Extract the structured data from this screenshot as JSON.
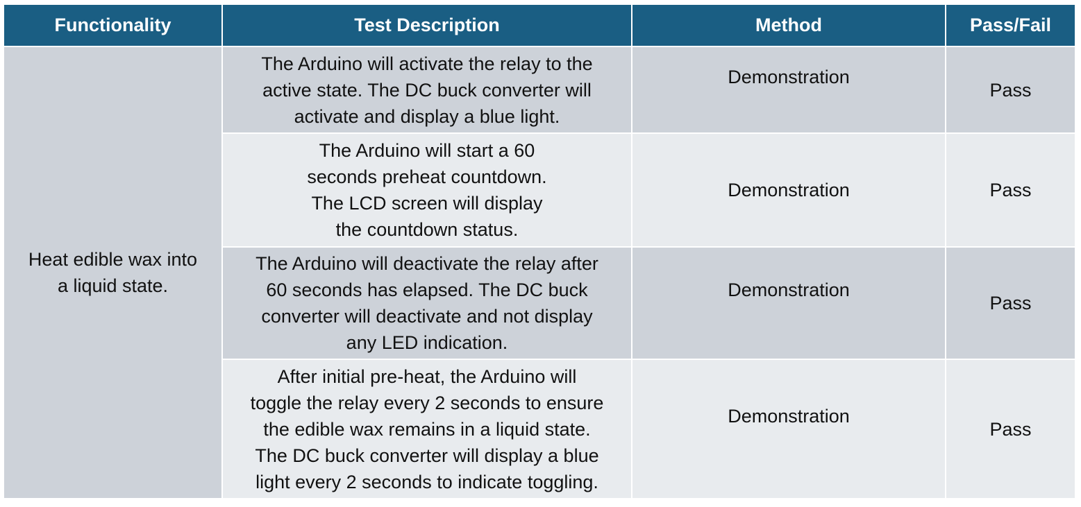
{
  "table": {
    "headers": [
      "Functionality",
      "Test Description",
      "Method",
      "Pass/Fail"
    ],
    "functionality": [
      "Heat edible wax into",
      "a liquid state."
    ],
    "rows": [
      {
        "description": [
          "The Arduino will activate the relay to the",
          "active state. The DC buck converter will",
          "activate and display a blue light."
        ],
        "method": "Demonstration",
        "result": "Pass"
      },
      {
        "description": [
          "The Arduino will start a 60",
          "seconds preheat countdown.",
          "The LCD screen will display",
          "the countdown status."
        ],
        "method": "Demonstration",
        "result": "Pass"
      },
      {
        "description": [
          "The Arduino will deactivate the relay after",
          "60 seconds has elapsed. The DC buck",
          "converter will deactivate and not display",
          "any LED indication."
        ],
        "method": "Demonstration",
        "result": "Pass"
      },
      {
        "description": [
          "After initial pre-heat, the Arduino will",
          "toggle the relay every 2 seconds to ensure",
          "the edible wax remains in a liquid state.",
          "The DC buck converter will display a blue",
          "light every 2 seconds to indicate toggling."
        ],
        "method": "Demonstration",
        "result": "Pass"
      }
    ]
  },
  "colors": {
    "header_bg": "#1a5e83",
    "row_dark": "#cdd2d9",
    "row_light": "#e8ebee"
  }
}
